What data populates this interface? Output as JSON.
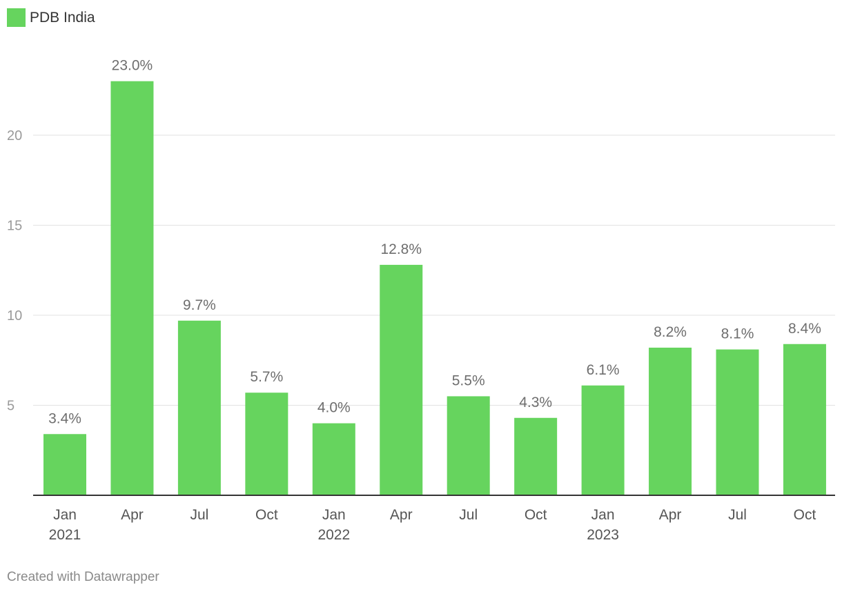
{
  "chart_data": {
    "type": "bar",
    "categories": [
      "Jan",
      "Apr",
      "Jul",
      "Oct",
      "Jan",
      "Apr",
      "Jul",
      "Oct",
      "Jan",
      "Apr",
      "Jul",
      "Oct"
    ],
    "year_labels": [
      "2021",
      "",
      "",
      "",
      "2022",
      "",
      "",
      "",
      "2023",
      "",
      "",
      ""
    ],
    "series": [
      {
        "name": "PDB India",
        "color": "#66d45e",
        "values": [
          3.4,
          23.0,
          9.7,
          5.7,
          4.0,
          12.8,
          5.5,
          4.3,
          6.1,
          8.2,
          8.1,
          8.4
        ],
        "labels": [
          "3.4%",
          "23.0%",
          "9.7%",
          "5.7%",
          "4.0%",
          "12.8%",
          "5.5%",
          "4.3%",
          "6.1%",
          "8.2%",
          "8.1%",
          "8.4%"
        ]
      }
    ],
    "ylim": [
      0,
      23
    ],
    "y_ticks": [
      5,
      10,
      15,
      20
    ],
    "grid": true,
    "legend_placement": "top-left"
  },
  "legend": {
    "label": "PDB India"
  },
  "footer": {
    "text": "Created with Datawrapper"
  }
}
